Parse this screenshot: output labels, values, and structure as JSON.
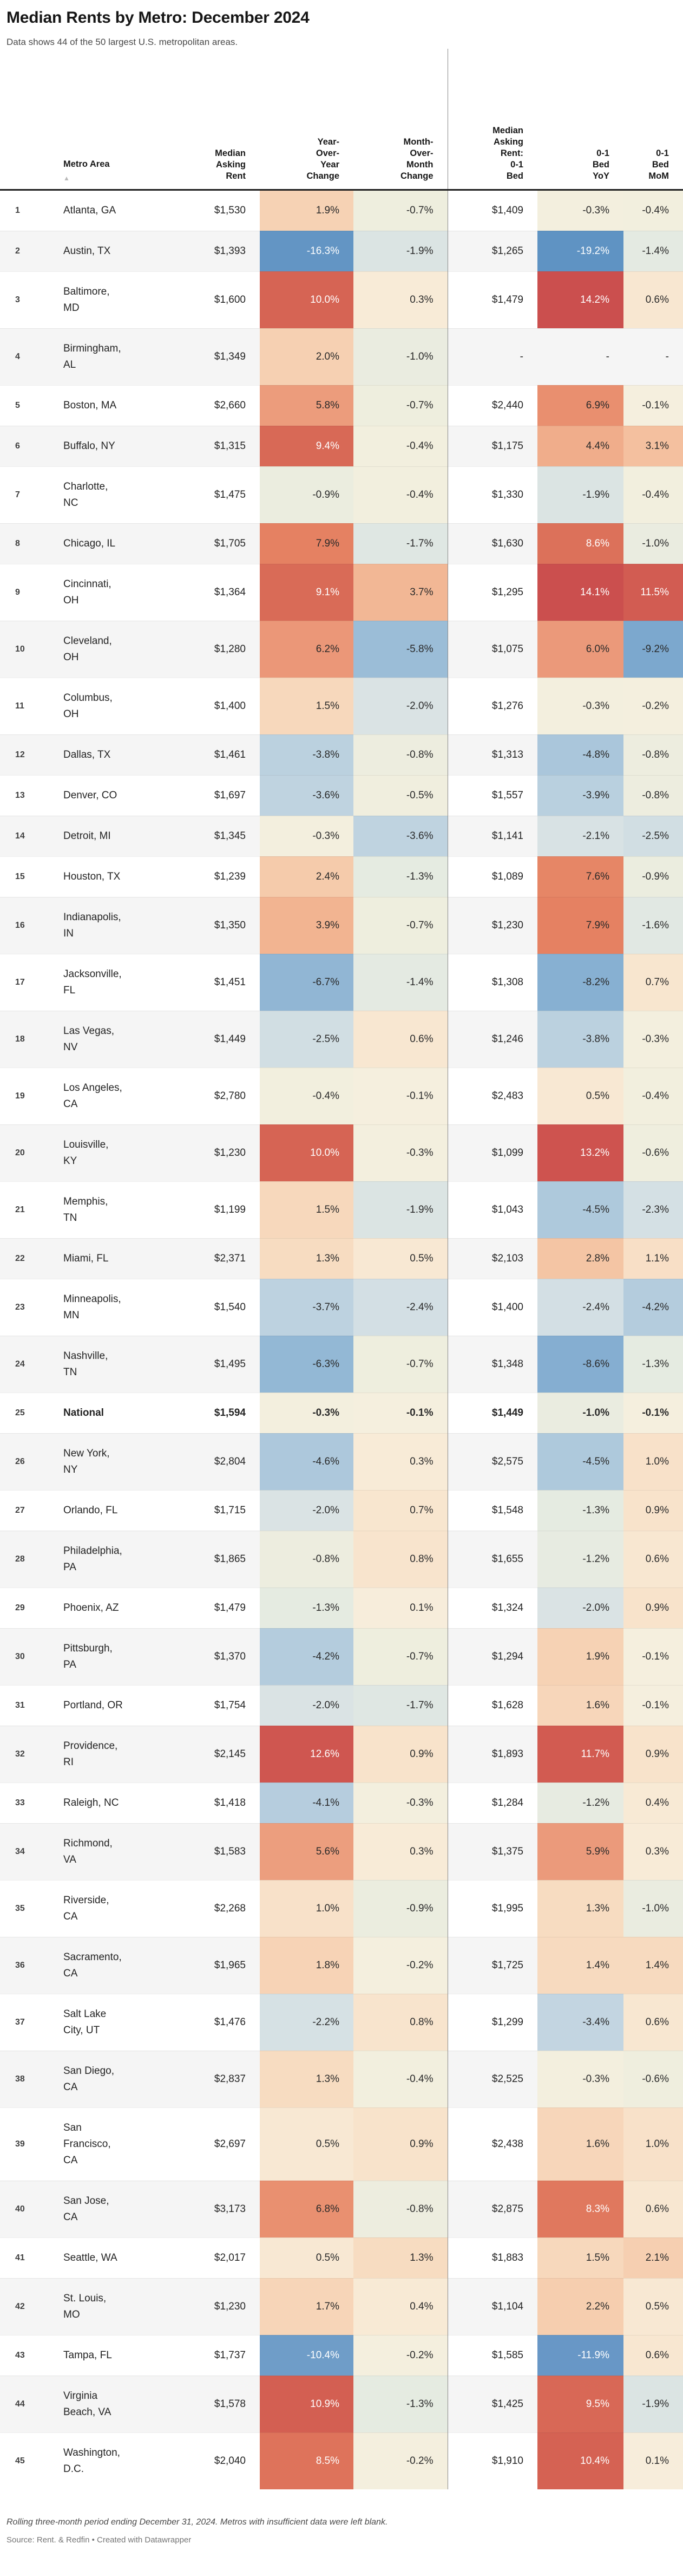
{
  "header": {
    "title": "Median Rents by Metro: December 2024",
    "subtitle": "Data shows 44 of the 50 largest U.S. metropolitan areas."
  },
  "table": {
    "sort_icon": "▲",
    "headers": [
      "",
      "Metro Area",
      "Median\nAsking\nRent",
      "Year-\nOver-\nYear\nChange",
      "Month-\nOver-\nMonth\nChange",
      "Median\nAsking\nRent:\n0-1\nBed",
      "0-1\nBed\nYoY",
      "0-1\nBed\nMoM"
    ]
  },
  "colors": {
    "accent_red": "#cb4f4e",
    "accent_blue": "#5f93c3",
    "stripe": "#f5f5f5",
    "divider": "#8a8a8a",
    "cell_text_dark": "#292929",
    "cell_text_light": "#ffffff",
    "white_text_pos_threshold": 8.2,
    "white_text_neg_threshold": -10,
    "scale": [
      [
        -19.2,
        "#5f93c3"
      ],
      [
        -12,
        "#6897c6"
      ],
      [
        -10,
        "#719fc9"
      ],
      [
        -8.6,
        "#85aed1"
      ],
      [
        -6.3,
        "#93b8d5"
      ],
      [
        -4.5,
        "#aec9dc"
      ],
      [
        -3.4,
        "#c3d5e1"
      ],
      [
        -2.2,
        "#d6e1e4"
      ],
      [
        -1.4,
        "#e4eae2"
      ],
      [
        -0.7,
        "#eeeede"
      ],
      [
        -0.1,
        "#f5efde"
      ],
      [
        0.3,
        "#f8ebd7"
      ],
      [
        0.9,
        "#f8e3cb"
      ],
      [
        1.6,
        "#f7d6ba"
      ],
      [
        2.6,
        "#f5c8a7"
      ],
      [
        4.1,
        "#f1b18e"
      ],
      [
        6,
        "#eb997a"
      ],
      [
        7.2,
        "#e88b6b"
      ],
      [
        8,
        "#e48061"
      ],
      [
        8.7,
        "#db6e59"
      ],
      [
        10.2,
        "#d56353"
      ],
      [
        12.8,
        "#cf5550"
      ],
      [
        14.2,
        "#cb4f4e"
      ]
    ]
  },
  "chart_data": {
    "type": "table",
    "title": "Median Rents by Metro: December 2024",
    "columns": [
      "#",
      "Metro Area",
      "Median Asking Rent",
      "Year-Over-Year Change",
      "Month-Over-Month Change",
      "Median Asking Rent: 0-1 Bed",
      "0-1 Bed YoY",
      "0-1 Bed MoM"
    ],
    "rows": [
      {
        "rank": 1,
        "metro": "Atlanta, GA",
        "rent": "$1,530",
        "yoy": 1.9,
        "mom": -0.7,
        "rent01": "$1,409",
        "yoy01": -0.3,
        "mom01": -0.4
      },
      {
        "rank": 2,
        "metro": "Austin, TX",
        "rent": "$1,393",
        "yoy": -16.3,
        "mom": -1.9,
        "rent01": "$1,265",
        "yoy01": -19.2,
        "mom01": -1.4
      },
      {
        "rank": 3,
        "metro": "Baltimore,\nMD",
        "rent": "$1,600",
        "yoy": 10.0,
        "mom": 0.3,
        "rent01": "$1,479",
        "yoy01": 14.2,
        "mom01": 0.6
      },
      {
        "rank": 4,
        "metro": "Birmingham,\nAL",
        "rent": "$1,349",
        "yoy": 2.0,
        "mom": -1.0,
        "rent01": null,
        "yoy01": null,
        "mom01": null
      },
      {
        "rank": 5,
        "metro": "Boston, MA",
        "rent": "$2,660",
        "yoy": 5.8,
        "mom": -0.7,
        "rent01": "$2,440",
        "yoy01": 6.9,
        "mom01": -0.1
      },
      {
        "rank": 6,
        "metro": "Buffalo, NY",
        "rent": "$1,315",
        "yoy": 9.4,
        "mom": -0.4,
        "rent01": "$1,175",
        "yoy01": 4.4,
        "mom01": 3.1
      },
      {
        "rank": 7,
        "metro": "Charlotte,\nNC",
        "rent": "$1,475",
        "yoy": -0.9,
        "mom": -0.4,
        "rent01": "$1,330",
        "yoy01": -1.9,
        "mom01": -0.4
      },
      {
        "rank": 8,
        "metro": "Chicago, IL",
        "rent": "$1,705",
        "yoy": 7.9,
        "mom": -1.7,
        "rent01": "$1,630",
        "yoy01": 8.6,
        "mom01": -1.0
      },
      {
        "rank": 9,
        "metro": "Cincinnati,\nOH",
        "rent": "$1,364",
        "yoy": 9.1,
        "mom": 3.7,
        "rent01": "$1,295",
        "yoy01": 14.1,
        "mom01": 11.5
      },
      {
        "rank": 10,
        "metro": "Cleveland,\nOH",
        "rent": "$1,280",
        "yoy": 6.2,
        "mom": -5.8,
        "rent01": "$1,075",
        "yoy01": 6.0,
        "mom01": -9.2
      },
      {
        "rank": 11,
        "metro": "Columbus,\nOH",
        "rent": "$1,400",
        "yoy": 1.5,
        "mom": -2.0,
        "rent01": "$1,276",
        "yoy01": -0.3,
        "mom01": -0.2
      },
      {
        "rank": 12,
        "metro": "Dallas, TX",
        "rent": "$1,461",
        "yoy": -3.8,
        "mom": -0.8,
        "rent01": "$1,313",
        "yoy01": -4.8,
        "mom01": -0.8
      },
      {
        "rank": 13,
        "metro": "Denver, CO",
        "rent": "$1,697",
        "yoy": -3.6,
        "mom": -0.5,
        "rent01": "$1,557",
        "yoy01": -3.9,
        "mom01": -0.8
      },
      {
        "rank": 14,
        "metro": "Detroit, MI",
        "rent": "$1,345",
        "yoy": -0.3,
        "mom": -3.6,
        "rent01": "$1,141",
        "yoy01": -2.1,
        "mom01": -2.5
      },
      {
        "rank": 15,
        "metro": "Houston, TX",
        "rent": "$1,239",
        "yoy": 2.4,
        "mom": -1.3,
        "rent01": "$1,089",
        "yoy01": 7.6,
        "mom01": -0.9
      },
      {
        "rank": 16,
        "metro": "Indianapolis,\nIN",
        "rent": "$1,350",
        "yoy": 3.9,
        "mom": -0.7,
        "rent01": "$1,230",
        "yoy01": 7.9,
        "mom01": -1.6
      },
      {
        "rank": 17,
        "metro": "Jacksonville,\nFL",
        "rent": "$1,451",
        "yoy": -6.7,
        "mom": -1.4,
        "rent01": "$1,308",
        "yoy01": -8.2,
        "mom01": 0.7
      },
      {
        "rank": 18,
        "metro": "Las Vegas,\nNV",
        "rent": "$1,449",
        "yoy": -2.5,
        "mom": 0.6,
        "rent01": "$1,246",
        "yoy01": -3.8,
        "mom01": -0.3
      },
      {
        "rank": 19,
        "metro": "Los Angeles,\nCA",
        "rent": "$2,780",
        "yoy": -0.4,
        "mom": -0.1,
        "rent01": "$2,483",
        "yoy01": 0.5,
        "mom01": -0.4
      },
      {
        "rank": 20,
        "metro": "Louisville,\nKY",
        "rent": "$1,230",
        "yoy": 10.0,
        "mom": -0.3,
        "rent01": "$1,099",
        "yoy01": 13.2,
        "mom01": -0.6
      },
      {
        "rank": 21,
        "metro": "Memphis,\nTN",
        "rent": "$1,199",
        "yoy": 1.5,
        "mom": -1.9,
        "rent01": "$1,043",
        "yoy01": -4.5,
        "mom01": -2.3
      },
      {
        "rank": 22,
        "metro": "Miami, FL",
        "rent": "$2,371",
        "yoy": 1.3,
        "mom": 0.5,
        "rent01": "$2,103",
        "yoy01": 2.8,
        "mom01": 1.1
      },
      {
        "rank": 23,
        "metro": "Minneapolis,\nMN",
        "rent": "$1,540",
        "yoy": -3.7,
        "mom": -2.4,
        "rent01": "$1,400",
        "yoy01": -2.4,
        "mom01": -4.2
      },
      {
        "rank": 24,
        "metro": "Nashville,\nTN",
        "rent": "$1,495",
        "yoy": -6.3,
        "mom": -0.7,
        "rent01": "$1,348",
        "yoy01": -8.6,
        "mom01": -1.3
      },
      {
        "rank": 25,
        "metro": "National",
        "rent": "$1,594",
        "yoy": -0.3,
        "mom": -0.1,
        "rent01": "$1,449",
        "yoy01": -1.0,
        "mom01": -0.1,
        "bold": true
      },
      {
        "rank": 26,
        "metro": "New York,\nNY",
        "rent": "$2,804",
        "yoy": -4.6,
        "mom": 0.3,
        "rent01": "$2,575",
        "yoy01": -4.5,
        "mom01": 1.0
      },
      {
        "rank": 27,
        "metro": "Orlando, FL",
        "rent": "$1,715",
        "yoy": -2.0,
        "mom": 0.7,
        "rent01": "$1,548",
        "yoy01": -1.3,
        "mom01": 0.9
      },
      {
        "rank": 28,
        "metro": "Philadelphia,\nPA",
        "rent": "$1,865",
        "yoy": -0.8,
        "mom": 0.8,
        "rent01": "$1,655",
        "yoy01": -1.2,
        "mom01": 0.6
      },
      {
        "rank": 29,
        "metro": "Phoenix, AZ",
        "rent": "$1,479",
        "yoy": -1.3,
        "mom": 0.1,
        "rent01": "$1,324",
        "yoy01": -2.0,
        "mom01": 0.9
      },
      {
        "rank": 30,
        "metro": "Pittsburgh,\nPA",
        "rent": "$1,370",
        "yoy": -4.2,
        "mom": -0.7,
        "rent01": "$1,294",
        "yoy01": 1.9,
        "mom01": -0.1
      },
      {
        "rank": 31,
        "metro": "Portland, OR",
        "rent": "$1,754",
        "yoy": -2.0,
        "mom": -1.7,
        "rent01": "$1,628",
        "yoy01": 1.6,
        "mom01": -0.1
      },
      {
        "rank": 32,
        "metro": "Providence,\nRI",
        "rent": "$2,145",
        "yoy": 12.6,
        "mom": 0.9,
        "rent01": "$1,893",
        "yoy01": 11.7,
        "mom01": 0.9
      },
      {
        "rank": 33,
        "metro": "Raleigh, NC",
        "rent": "$1,418",
        "yoy": -4.1,
        "mom": -0.3,
        "rent01": "$1,284",
        "yoy01": -1.2,
        "mom01": 0.4
      },
      {
        "rank": 34,
        "metro": "Richmond,\nVA",
        "rent": "$1,583",
        "yoy": 5.6,
        "mom": 0.3,
        "rent01": "$1,375",
        "yoy01": 5.9,
        "mom01": 0.3
      },
      {
        "rank": 35,
        "metro": "Riverside,\nCA",
        "rent": "$2,268",
        "yoy": 1.0,
        "mom": -0.9,
        "rent01": "$1,995",
        "yoy01": 1.3,
        "mom01": -1.0
      },
      {
        "rank": 36,
        "metro": "Sacramento,\nCA",
        "rent": "$1,965",
        "yoy": 1.8,
        "mom": -0.2,
        "rent01": "$1,725",
        "yoy01": 1.4,
        "mom01": 1.4
      },
      {
        "rank": 37,
        "metro": "Salt Lake\nCity, UT",
        "rent": "$1,476",
        "yoy": -2.2,
        "mom": 0.8,
        "rent01": "$1,299",
        "yoy01": -3.4,
        "mom01": 0.6
      },
      {
        "rank": 38,
        "metro": "San Diego,\nCA",
        "rent": "$2,837",
        "yoy": 1.3,
        "mom": -0.4,
        "rent01": "$2,525",
        "yoy01": -0.3,
        "mom01": -0.6
      },
      {
        "rank": 39,
        "metro": "San\nFrancisco,\nCA",
        "rent": "$2,697",
        "yoy": 0.5,
        "mom": 0.9,
        "rent01": "$2,438",
        "yoy01": 1.6,
        "mom01": 1.0
      },
      {
        "rank": 40,
        "metro": "San Jose,\nCA",
        "rent": "$3,173",
        "yoy": 6.8,
        "mom": -0.8,
        "rent01": "$2,875",
        "yoy01": 8.3,
        "mom01": 0.6
      },
      {
        "rank": 41,
        "metro": "Seattle, WA",
        "rent": "$2,017",
        "yoy": 0.5,
        "mom": 1.3,
        "rent01": "$1,883",
        "yoy01": 1.5,
        "mom01": 2.1
      },
      {
        "rank": 42,
        "metro": "St. Louis,\nMO",
        "rent": "$1,230",
        "yoy": 1.7,
        "mom": 0.4,
        "rent01": "$1,104",
        "yoy01": 2.2,
        "mom01": 0.5
      },
      {
        "rank": 43,
        "metro": "Tampa, FL",
        "rent": "$1,737",
        "yoy": -10.4,
        "mom": -0.2,
        "rent01": "$1,585",
        "yoy01": -11.9,
        "mom01": 0.6
      },
      {
        "rank": 44,
        "metro": "Virginia\nBeach, VA",
        "rent": "$1,578",
        "yoy": 10.9,
        "mom": -1.3,
        "rent01": "$1,425",
        "yoy01": 9.5,
        "mom01": -1.9
      },
      {
        "rank": 45,
        "metro": "Washington,\nD.C.",
        "rent": "$2,040",
        "yoy": 8.5,
        "mom": -0.2,
        "rent01": "$1,910",
        "yoy01": 10.4,
        "mom01": 0.1
      }
    ]
  },
  "footer": {
    "note": "Rolling three-month period ending December 31, 2024. Metros with insufficient data were left blank.",
    "source": "Source: Rent. & Redfin • Created with Datawrapper"
  }
}
